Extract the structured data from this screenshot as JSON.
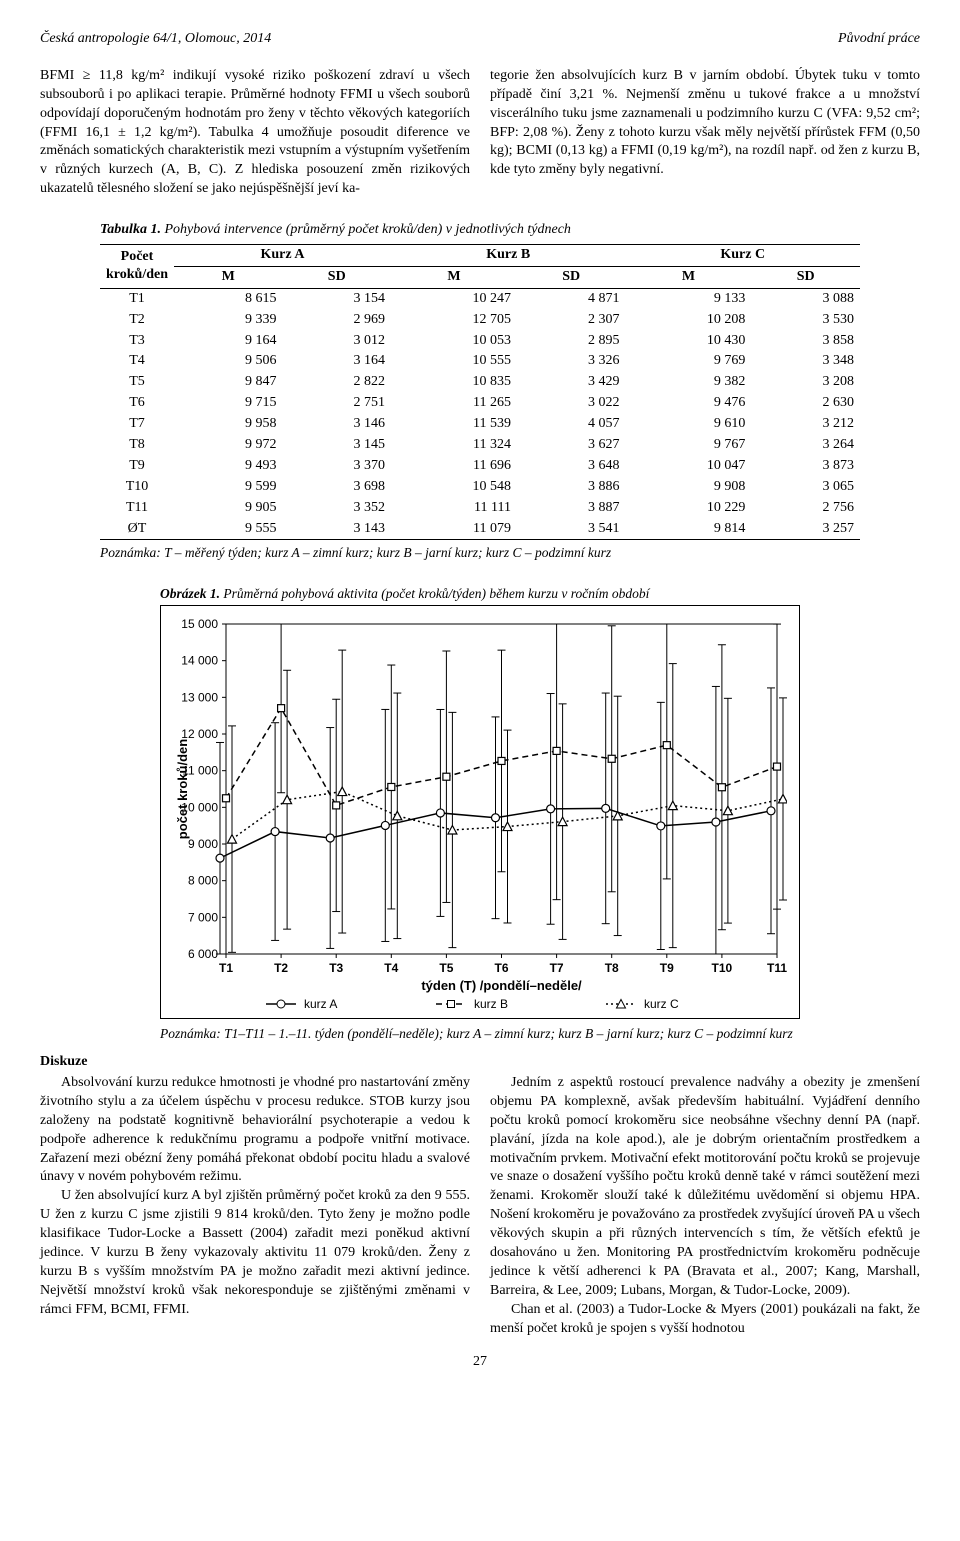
{
  "header": {
    "left": "Česká antropologie 64/1, Olomouc, 2014",
    "right": "Původní práce"
  },
  "para": {
    "leftCol": "BFMI ≥ 11,8 kg/m² indikují vysoké riziko poškození zdraví u všech subsouborů i po aplikaci terapie. Průměrné hodnoty FFMI u všech souborů odpovídají doporučeným hodnotám pro ženy v těchto věkových kategoriích (FFMI 16,1 ± 1,2 kg/m²). Tabulka 4 umožňuje posoudit diference ve změnách somatických charakteristik mezi vstupním a výstupním vyšetřením v různých kurzech (A, B, C). Z hlediska posouzení změn rizikových ukazatelů tělesného složení se jako nejúspěšnější jeví ka-",
    "rightCol": "tegorie žen absolvujících kurz B v jarním období. Úbytek tuku v tomto případě činí 3,21 %. Nejmenší změnu u tukové frakce a u množství viscerálního tuku jsme zaznamenali u podzimního kurzu C (VFA: 9,52 cm²; BFP: 2,08 %). Ženy z tohoto kurzu však měly největší přírůstek FFM (0,50 kg); BCMI (0,13 kg) a FFMI (0,19 kg/m²), na rozdíl např. od žen z kurzu B, kde tyto změny byly negativní."
  },
  "table": {
    "caption_prefix": "Tabulka 1.",
    "caption": " Pohybová intervence (průměrný počet kroků/den) v jednotlivých týdnech",
    "rowHeader": "Počet kroků/den",
    "groups": [
      "Kurz A",
      "Kurz B",
      "Kurz C"
    ],
    "subs": [
      "M",
      "SD"
    ],
    "rows": [
      {
        "label": "T1",
        "v": [
          "8 615",
          "3 154",
          "10 247",
          "4 871",
          "9 133",
          "3 088"
        ]
      },
      {
        "label": "T2",
        "v": [
          "9 339",
          "2 969",
          "12 705",
          "2 307",
          "10 208",
          "3 530"
        ]
      },
      {
        "label": "T3",
        "v": [
          "9 164",
          "3 012",
          "10 053",
          "2 895",
          "10 430",
          "3 858"
        ]
      },
      {
        "label": "T4",
        "v": [
          "9 506",
          "3 164",
          "10 555",
          "3 326",
          "9 769",
          "3 348"
        ]
      },
      {
        "label": "T5",
        "v": [
          "9 847",
          "2 822",
          "10 835",
          "3 429",
          "9 382",
          "3 208"
        ]
      },
      {
        "label": "T6",
        "v": [
          "9 715",
          "2 751",
          "11 265",
          "3 022",
          "9 476",
          "2 630"
        ]
      },
      {
        "label": "T7",
        "v": [
          "9 958",
          "3 146",
          "11 539",
          "4 057",
          "9 610",
          "3 212"
        ]
      },
      {
        "label": "T8",
        "v": [
          "9 972",
          "3 145",
          "11 324",
          "3 627",
          "9 767",
          "3 264"
        ]
      },
      {
        "label": "T9",
        "v": [
          "9 493",
          "3 370",
          "11 696",
          "3 648",
          "10 047",
          "3 873"
        ]
      },
      {
        "label": "T10",
        "v": [
          "9 599",
          "3 698",
          "10 548",
          "3 886",
          "9 908",
          "3 065"
        ]
      },
      {
        "label": "T11",
        "v": [
          "9 905",
          "3 352",
          "11 111",
          "3 887",
          "10 229",
          "2 756"
        ]
      },
      {
        "label": "ØT",
        "v": [
          "9 555",
          "3 143",
          "11 079",
          "3 541",
          "9 814",
          "3 257"
        ]
      }
    ],
    "note": "Poznámka: T – měřený týden; kurz A – zimní kurz; kurz B – jarní kurz; kurz C – podzimní kurz"
  },
  "figure": {
    "caption_prefix": "Obrázek 1.",
    "caption": " Průměrná pohybová aktivita (počet kroků/týden) během kurzu v ročním období",
    "ylabel": "počet kroků/den",
    "xlabel": "týden (T) /pondělí–neděle/",
    "xticks": [
      "T1",
      "T2",
      "T3",
      "T4",
      "T5",
      "T6",
      "T7",
      "T8",
      "T9",
      "T10",
      "T11"
    ],
    "ymin": 6000,
    "ymax": 15000,
    "ytick_step": 1000,
    "series": [
      {
        "name": "kurz A",
        "color": "#000000",
        "dash": "",
        "marker": "circle",
        "mean": [
          8615,
          9339,
          9164,
          9506,
          9847,
          9715,
          9958,
          9972,
          9493,
          9599,
          9905
        ],
        "sd": [
          3154,
          2969,
          3012,
          3164,
          2822,
          2751,
          3146,
          3145,
          3370,
          3698,
          3352
        ]
      },
      {
        "name": "kurz B",
        "color": "#000000",
        "dash": "6 4",
        "marker": "square",
        "mean": [
          10247,
          12705,
          10053,
          10555,
          10835,
          11265,
          11539,
          11324,
          11696,
          10548,
          11111
        ],
        "sd": [
          4871,
          2307,
          2895,
          3326,
          3429,
          3022,
          4057,
          3627,
          3648,
          3886,
          3887
        ]
      },
      {
        "name": "kurz C",
        "color": "#000000",
        "dash": "2 3",
        "marker": "triangle",
        "mean": [
          9133,
          10208,
          10430,
          9769,
          9382,
          9476,
          9610,
          9767,
          10047,
          9908,
          10229
        ],
        "sd": [
          3088,
          3530,
          3858,
          3348,
          3208,
          2630,
          3212,
          3264,
          3873,
          3065,
          2756
        ]
      }
    ],
    "note": "Poznámka: T1–T11 – 1.–11. týden (pondělí–neděle); kurz A – zimní kurz; kurz B – jarní kurz; kurz C – podzimní kurz",
    "legend_labels": [
      "kurz A",
      "kurz B",
      "kurz C"
    ]
  },
  "discussion": {
    "heading": "Diskuze",
    "leftCol": "Absolvování kurzu redukce hmotnosti je vhodné pro nastartování změny životního stylu a za účelem úspěchu v procesu redukce. STOB kurzy jsou založeny na podstatě kognitivně behaviorální psychoterapie a vedou k podpoře adherence k redukčnímu programu a podpoře vnitřní motivace. Zařazení mezi obézní ženy pomáhá překonat období pocitu hladu a svalové únavy v novém pohybovém režimu.\nU žen absolvující kurz A byl zjištěn průměrný počet kroků za den 9 555. U žen z kurzu C jsme zjistili 9 814 kroků/den. Tyto ženy je možno podle klasifikace Tudor-Locke a Bassett (2004) zařadit mezi poněkud aktivní jedince. V kurzu B ženy vykazovaly aktivitu 11 079 kroků/den. Ženy z kurzu B s vyšším množstvím PA je možno zařadit mezi aktivní jedince. Největší množství kroků však nekoresponduje se zjištěnými změnami v rámci FFM, BCMI, FFMI.",
    "rightCol": "Jedním z aspektů rostoucí prevalence nadváhy a obezity je zmenšení objemu PA komplexně, avšak především habituální. Vyjádření denního počtu kroků pomocí krokoměru sice neobsáhne všechny denní PA (např. plavání, jízda na kole apod.), ale je dobrým orientačním prostředkem a motivačním prvkem. Motivační efekt motitorování počtu kroků se projevuje ve snaze o dosažení vyššího počtu kroků denně také v rámci soutěžení mezi ženami. Krokoměr slouží také k důležitému uvědomění si objemu HPA. Nošení krokoměru je považováno za prostředek zvyšující úroveň PA u všech věkových skupin a při různých intervencích s tím, že větších efektů je dosahováno u žen. Monitoring PA prostřednictvím krokoměru podněcuje jedince k větší adherenci k PA (Bravata et al., 2007; Kang, Marshall, Barreira, & Lee, 2009; Lubans, Morgan, & Tudor-Locke, 2009).\nChan et al. (2003) a Tudor-Locke & Myers (2001) poukázali na fakt, že menší počet kroků je spojen s vyšší hodnotou"
  },
  "pagenum": "27"
}
